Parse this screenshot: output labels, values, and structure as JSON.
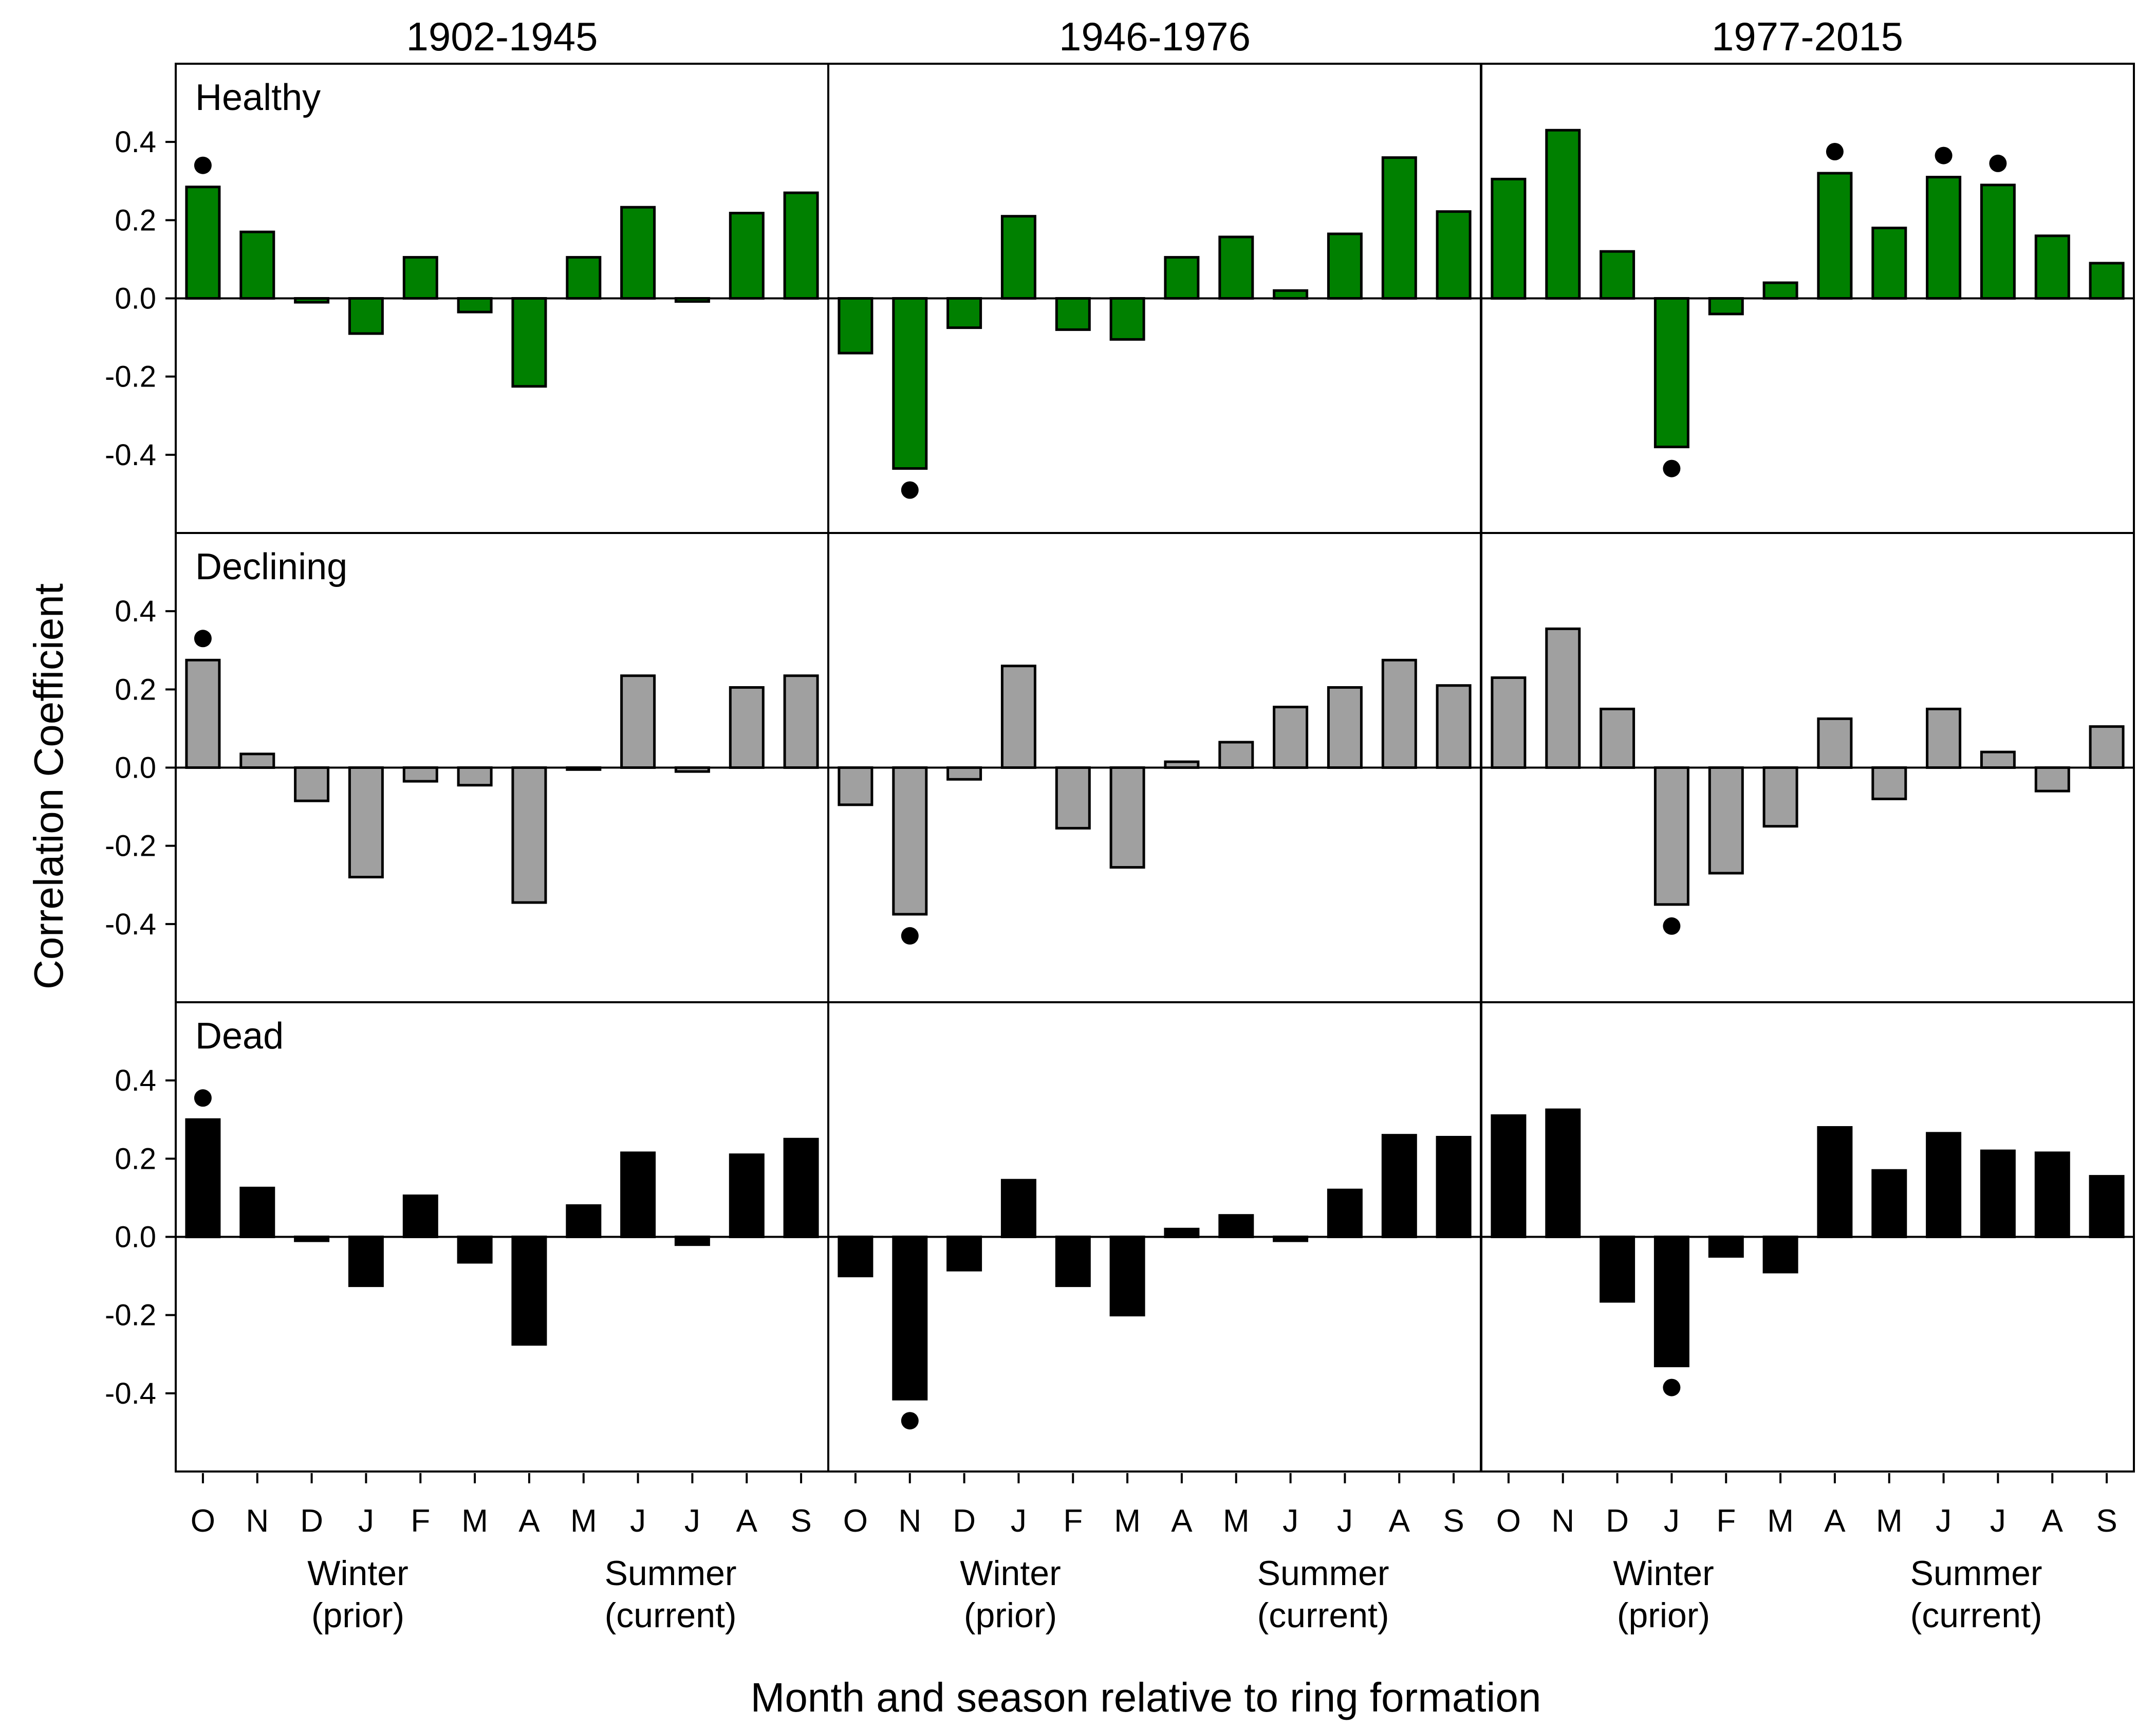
{
  "chart_data": {
    "type": "bar",
    "ylabel": "Correlation Coefficient",
    "xlabel": "Month and season relative to ring formation",
    "ylim": [
      -0.6,
      0.6
    ],
    "yticks": [
      "0.4",
      "0.2",
      "0.0",
      "-0.2",
      "-0.4"
    ],
    "ytick_values": [
      0.4,
      0.2,
      0.0,
      -0.2,
      -0.4
    ],
    "months": [
      "O",
      "N",
      "D",
      "J",
      "F",
      "M",
      "A",
      "M",
      "J",
      "J",
      "A",
      "S"
    ],
    "season_labels": [
      {
        "line1": "Winter",
        "line2": "(prior)"
      },
      {
        "line1": "Summer",
        "line2": "(current)"
      }
    ],
    "periods": [
      "1902-1945",
      "1946-1976",
      "1977-2015"
    ],
    "conditions": [
      {
        "name": "Healthy",
        "color": "#008000"
      },
      {
        "name": "Declining",
        "color": "#a0a0a0"
      },
      {
        "name": "Dead",
        "color": "#000000"
      }
    ],
    "series": [
      {
        "condition": "Healthy",
        "period": "1902-1945",
        "values": [
          0.285,
          0.17,
          -0.01,
          -0.09,
          0.105,
          -0.035,
          -0.225,
          0.105,
          0.233,
          -0.008,
          0.218,
          0.27
        ],
        "significant": [
          0
        ]
      },
      {
        "condition": "Healthy",
        "period": "1946-1976",
        "values": [
          -0.14,
          -0.435,
          -0.075,
          0.21,
          -0.08,
          -0.105,
          0.105,
          0.157,
          0.02,
          0.165,
          0.36,
          0.222
        ],
        "significant": [
          1
        ]
      },
      {
        "condition": "Healthy",
        "period": "1977-2015",
        "values": [
          0.305,
          0.43,
          0.12,
          -0.38,
          -0.04,
          0.04,
          0.32,
          0.18,
          0.31,
          0.29,
          0.16,
          0.09
        ],
        "significant": [
          3,
          6,
          8,
          9
        ]
      },
      {
        "condition": "Declining",
        "period": "1902-1945",
        "values": [
          0.275,
          0.035,
          -0.085,
          -0.28,
          -0.035,
          -0.045,
          -0.345,
          -0.005,
          0.235,
          -0.01,
          0.205,
          0.235
        ],
        "significant": [
          0
        ]
      },
      {
        "condition": "Declining",
        "period": "1946-1976",
        "values": [
          -0.095,
          -0.375,
          -0.03,
          0.26,
          -0.155,
          -0.255,
          0.015,
          0.065,
          0.155,
          0.205,
          0.275,
          0.21
        ],
        "significant": [
          1
        ]
      },
      {
        "condition": "Declining",
        "period": "1977-2015",
        "values": [
          0.23,
          0.355,
          0.15,
          -0.35,
          -0.27,
          -0.15,
          0.125,
          -0.08,
          0.15,
          0.04,
          -0.06,
          0.105
        ],
        "significant": [
          3
        ]
      },
      {
        "condition": "Dead",
        "period": "1902-1945",
        "values": [
          0.3,
          0.125,
          -0.01,
          -0.125,
          0.105,
          -0.065,
          -0.275,
          0.08,
          0.215,
          -0.02,
          0.21,
          0.25
        ],
        "significant": [
          0
        ]
      },
      {
        "condition": "Dead",
        "period": "1946-1976",
        "values": [
          -0.1,
          -0.415,
          -0.085,
          0.145,
          -0.125,
          -0.2,
          0.02,
          0.055,
          -0.01,
          0.12,
          0.26,
          0.255
        ],
        "significant": [
          1
        ]
      },
      {
        "condition": "Dead",
        "period": "1977-2015",
        "values": [
          0.31,
          0.325,
          -0.165,
          -0.33,
          -0.05,
          -0.09,
          0.28,
          0.17,
          0.265,
          0.22,
          0.215,
          0.155
        ],
        "significant": [
          3
        ]
      }
    ],
    "grid": false,
    "legend": "none"
  }
}
